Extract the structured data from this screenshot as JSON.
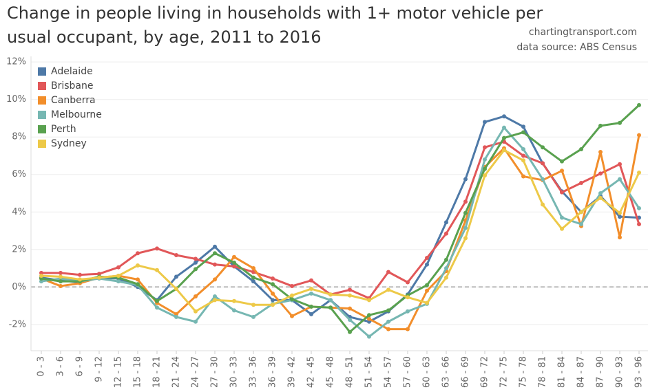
{
  "chart_data": {
    "type": "line",
    "title": "Change in people living in households with 1+ motor vehicle per usual occupant, by age, 2011 to 2016",
    "annotations": [
      "chartingtransport.com",
      "data source: ABS Census"
    ],
    "categories": [
      "0 - 3",
      "3 - 6",
      "6 - 9",
      "9 - 12",
      "12 - 15",
      "15 - 18",
      "18 - 21",
      "21 - 24",
      "24 - 27",
      "27 - 30",
      "30 - 33",
      "33 - 36",
      "36 - 39",
      "39 - 42",
      "42 - 45",
      "45 - 48",
      "48 - 51",
      "51 - 54",
      "54 - 57",
      "57 - 60",
      "60 - 63",
      "63 - 66",
      "66 - 69",
      "69 - 72",
      "72 - 75",
      "75 - 78",
      "78 - 81",
      "81 - 84",
      "84 - 87",
      "87 - 90",
      "90 - 93",
      "93 - 96"
    ],
    "series": [
      {
        "name": "Adelaide",
        "color": "#4e79a7",
        "values": [
          0.5,
          0.35,
          0.25,
          0.5,
          0.45,
          0.0,
          -0.7,
          0.55,
          1.3,
          2.15,
          1.1,
          0.3,
          -0.7,
          -0.7,
          -1.45,
          -0.7,
          -1.6,
          -1.85,
          -1.3,
          -0.4,
          1.2,
          3.45,
          5.75,
          8.8,
          9.1,
          8.55,
          6.6,
          5.1,
          4.0,
          4.85,
          3.75,
          3.7
        ]
      },
      {
        "name": "Brisbane",
        "color": "#e15759",
        "values": [
          0.75,
          0.75,
          0.65,
          0.7,
          1.05,
          1.8,
          2.05,
          1.7,
          1.5,
          1.2,
          1.1,
          0.8,
          0.45,
          0.05,
          0.35,
          -0.4,
          -0.15,
          -0.6,
          0.8,
          0.25,
          1.55,
          2.85,
          4.55,
          7.45,
          7.75,
          7.0,
          6.6,
          5.05,
          5.55,
          6.05,
          6.55,
          3.35
        ]
      },
      {
        "name": "Canberra",
        "color": "#f28e2b",
        "values": [
          0.45,
          0.05,
          0.2,
          0.5,
          0.6,
          0.4,
          -0.85,
          -1.45,
          -0.5,
          0.4,
          1.6,
          1.0,
          -0.35,
          -1.55,
          -1.05,
          -1.1,
          -1.15,
          -1.7,
          -2.25,
          -2.25,
          -0.2,
          0.85,
          3.55,
          6.4,
          7.4,
          5.9,
          5.7,
          6.2,
          3.25,
          7.2,
          2.65,
          8.1
        ]
      },
      {
        "name": "Melbourne",
        "color": "#76b7b2",
        "values": [
          0.3,
          0.45,
          0.3,
          0.45,
          0.3,
          0.1,
          -1.1,
          -1.6,
          -1.85,
          -0.5,
          -1.25,
          -1.6,
          -0.9,
          -0.7,
          -0.35,
          -0.7,
          -1.75,
          -2.65,
          -1.85,
          -1.3,
          -0.9,
          1.0,
          3.15,
          6.8,
          8.5,
          7.35,
          5.75,
          3.7,
          3.35,
          5.0,
          5.75,
          4.2
        ]
      },
      {
        "name": "Perth",
        "color": "#59a14f",
        "values": [
          0.45,
          0.3,
          0.3,
          0.55,
          0.5,
          0.15,
          -0.75,
          -0.1,
          0.95,
          1.8,
          1.3,
          0.5,
          0.15,
          -0.65,
          -1.05,
          -1.1,
          -2.4,
          -1.5,
          -1.25,
          -0.45,
          0.1,
          1.45,
          3.95,
          6.3,
          7.95,
          8.25,
          7.45,
          6.7,
          7.35,
          8.6,
          8.75,
          9.7
        ]
      },
      {
        "name": "Sydney",
        "color": "#edc948",
        "values": [
          0.6,
          0.55,
          0.4,
          0.5,
          0.6,
          1.15,
          0.9,
          -0.1,
          -1.3,
          -0.7,
          -0.75,
          -0.95,
          -0.95,
          -0.45,
          -0.1,
          -0.4,
          -0.45,
          -0.7,
          -0.15,
          -0.55,
          -0.85,
          0.5,
          2.6,
          5.95,
          7.3,
          6.75,
          4.4,
          3.1,
          4.0,
          4.75,
          3.95,
          6.1
        ]
      }
    ],
    "ylim": [
      -3.4,
      12.3
    ],
    "yticks": [
      {
        "value": -2,
        "label": "-2%"
      },
      {
        "value": 0,
        "label": "0%"
      },
      {
        "value": 2,
        "label": "2%"
      },
      {
        "value": 4,
        "label": "4%"
      },
      {
        "value": 6,
        "label": "6%"
      },
      {
        "value": 8,
        "label": "8%"
      },
      {
        "value": 10,
        "label": "10%"
      },
      {
        "value": 12,
        "label": "12%"
      }
    ],
    "grid": true,
    "legend": "top-left"
  }
}
